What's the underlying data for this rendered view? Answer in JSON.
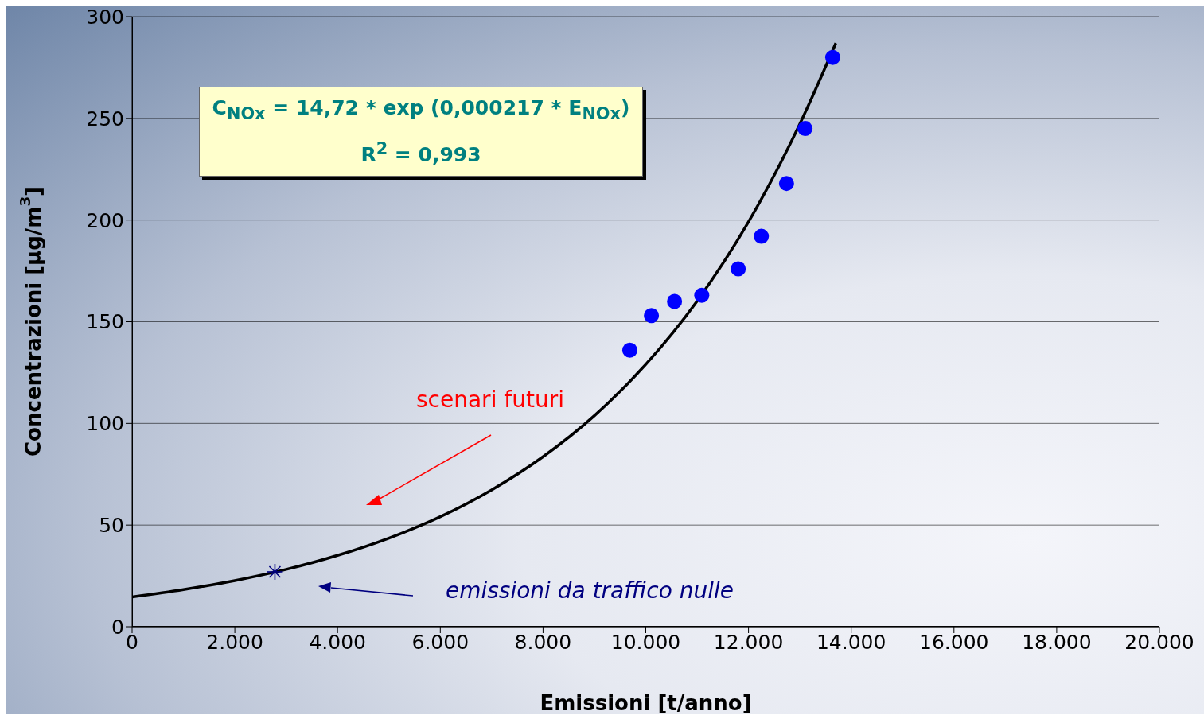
{
  "chart_data": {
    "type": "scatter",
    "xlabel": "Emissioni [t/anno]",
    "ylabel": "Concentrazioni [µg/m$^{3}$]",
    "xlim": [
      0,
      20000
    ],
    "xticks": [
      0,
      {
        "value": 2000,
        "label": "2.000"
      },
      {
        "value": 4000,
        "label": "4.000"
      },
      {
        "value": 6000,
        "label": "6.000"
      },
      {
        "value": 8000,
        "label": "8.000"
      },
      {
        "value": 10000,
        "label": "10.000"
      },
      {
        "value": 12000,
        "label": "12.000"
      },
      {
        "value": 14000,
        "label": "14.000"
      },
      {
        "value": 16000,
        "label": "16.000"
      },
      {
        "value": 18000,
        "label": "18.000"
      },
      {
        "value": 20000,
        "label": "20.000"
      }
    ],
    "ylim": [
      0,
      300
    ],
    "yticks": [
      0,
      50,
      100,
      150,
      200,
      250,
      300
    ],
    "grid": "y",
    "legend": false,
    "series": [
      {
        "color": "#0000ff",
        "marker": "circle",
        "x": [
          9690,
          10110,
          10560,
          11090,
          11800,
          12250,
          12740,
          13100,
          13640
        ],
        "values": [
          136,
          153,
          160,
          163,
          176,
          192,
          218,
          245,
          280
        ]
      },
      {
        "color": "#000080",
        "marker": "cross",
        "x": [
          2780
        ],
        "values": [
          27
        ]
      },
      {
        "type": "line",
        "color": "#000000",
        "x": [
          0,
          1000,
          2000,
          3000,
          4000,
          5000,
          6000,
          7000,
          8000,
          9000,
          10000,
          11000,
          12000,
          13000,
          13700
        ],
        "values": [
          14.7,
          18.3,
          22.7,
          28.2,
          35.1,
          43.6,
          54.1,
          67.3,
          83.6,
          103.8,
          129.0,
          160.2,
          199.1,
          247.3,
          287.0
        ]
      }
    ],
    "annotations": [
      "C$_{NOx}$ = 14,72 * exp (0,000217 * E$_{NOx}$)",
      "R$^{2}$ = 0,993",
      "scenari futuri",
      "emissioni da traffico nulle"
    ]
  }
}
